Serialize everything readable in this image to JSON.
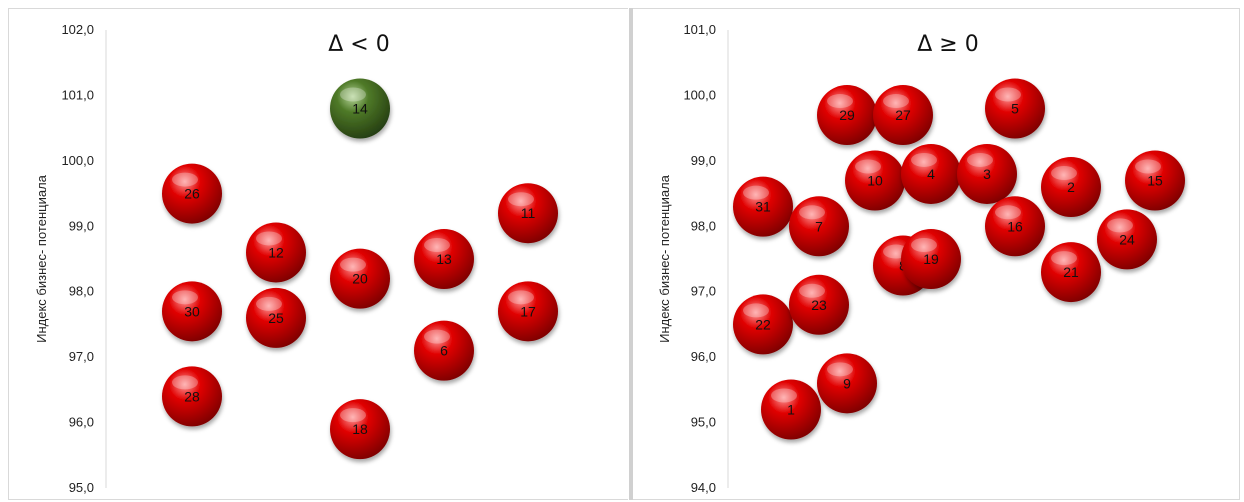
{
  "chart_data": [
    {
      "type": "scatter",
      "title": "Δ < 0",
      "ylabel": "Индекс бизнес- потенциала",
      "ylim": [
        95.0,
        102.0
      ],
      "yticks": [
        "95,0",
        "96,0",
        "97,0",
        "98,0",
        "99,0",
        "100,0",
        "101,0",
        "102,0"
      ],
      "colors": {
        "default": "#e00000",
        "highlight": "#4f7a28"
      },
      "points": [
        {
          "label": "26",
          "x": 1,
          "y": 99.5,
          "color": "red"
        },
        {
          "label": "30",
          "x": 1,
          "y": 97.7,
          "color": "red"
        },
        {
          "label": "28",
          "x": 1,
          "y": 96.4,
          "color": "red"
        },
        {
          "label": "12",
          "x": 2,
          "y": 98.6,
          "color": "red"
        },
        {
          "label": "25",
          "x": 2,
          "y": 97.6,
          "color": "red"
        },
        {
          "label": "14",
          "x": 3,
          "y": 100.8,
          "color": "green"
        },
        {
          "label": "20",
          "x": 3,
          "y": 98.2,
          "color": "red"
        },
        {
          "label": "18",
          "x": 3,
          "y": 95.9,
          "color": "red"
        },
        {
          "label": "13",
          "x": 4,
          "y": 98.5,
          "color": "red"
        },
        {
          "label": "6",
          "x": 4,
          "y": 97.1,
          "color": "red"
        },
        {
          "label": "11",
          "x": 5,
          "y": 99.2,
          "color": "red"
        },
        {
          "label": "17",
          "x": 5,
          "y": 97.7,
          "color": "red"
        }
      ]
    },
    {
      "type": "scatter",
      "title": "Δ ≥ 0",
      "ylabel": "Индекс бизнес- потенциала",
      "ylim": [
        94.0,
        101.0
      ],
      "yticks": [
        "94,0",
        "95,0",
        "96,0",
        "97,0",
        "98,0",
        "99,0",
        "100,0",
        "101,0"
      ],
      "colors": {
        "default": "#e00000"
      },
      "points": [
        {
          "label": "31",
          "x": 1.0,
          "y": 98.3,
          "color": "red"
        },
        {
          "label": "22",
          "x": 1.0,
          "y": 96.5,
          "color": "red"
        },
        {
          "label": "1",
          "x": 1.5,
          "y": 95.2,
          "color": "red"
        },
        {
          "label": "7",
          "x": 2.0,
          "y": 98.0,
          "color": "red"
        },
        {
          "label": "23",
          "x": 2.0,
          "y": 96.8,
          "color": "red"
        },
        {
          "label": "9",
          "x": 2.5,
          "y": 95.6,
          "color": "red"
        },
        {
          "label": "29",
          "x": 2.5,
          "y": 99.7,
          "color": "red"
        },
        {
          "label": "10",
          "x": 3.0,
          "y": 98.7,
          "color": "red"
        },
        {
          "label": "8",
          "x": 3.5,
          "y": 97.4,
          "color": "red"
        },
        {
          "label": "27",
          "x": 3.5,
          "y": 99.7,
          "color": "red"
        },
        {
          "label": "4",
          "x": 4.0,
          "y": 98.8,
          "color": "red"
        },
        {
          "label": "19",
          "x": 4.0,
          "y": 97.5,
          "color": "red"
        },
        {
          "label": "3",
          "x": 5.0,
          "y": 98.8,
          "color": "red"
        },
        {
          "label": "16",
          "x": 5.5,
          "y": 98.0,
          "color": "red"
        },
        {
          "label": "5",
          "x": 5.5,
          "y": 99.8,
          "color": "red"
        },
        {
          "label": "2",
          "x": 6.5,
          "y": 98.6,
          "color": "red"
        },
        {
          "label": "21",
          "x": 6.5,
          "y": 97.3,
          "color": "red"
        },
        {
          "label": "24",
          "x": 7.5,
          "y": 97.8,
          "color": "red"
        },
        {
          "label": "15",
          "x": 8.0,
          "y": 98.7,
          "color": "red"
        }
      ]
    }
  ]
}
